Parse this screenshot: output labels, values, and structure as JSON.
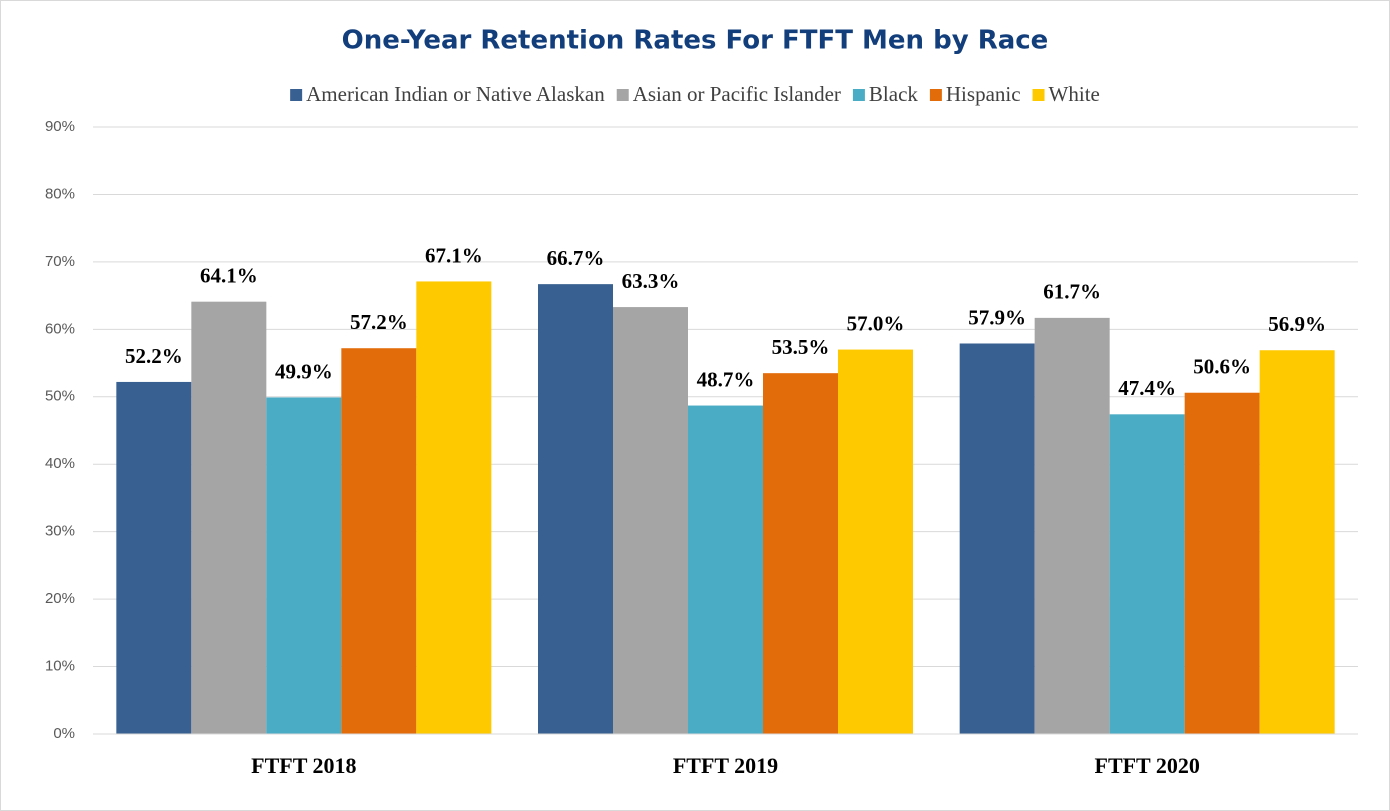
{
  "chart_data": {
    "type": "bar",
    "title": "One-Year Retention Rates For FTFT Men by Race",
    "categories": [
      "FTFT 2018",
      "FTFT 2019",
      "FTFT 2020"
    ],
    "series": [
      {
        "name": "American Indian or Native Alaskan",
        "color": "#386090",
        "values": [
          52.2,
          66.7,
          57.9
        ],
        "value_labels": [
          "52.2%",
          "66.7%",
          "57.9%"
        ]
      },
      {
        "name": "Asian or Pacific Islander",
        "color": "#a5a5a5",
        "values": [
          64.1,
          63.3,
          61.7
        ],
        "value_labels": [
          "64.1%",
          "63.3%",
          "61.7%"
        ]
      },
      {
        "name": "Black",
        "color": "#4bacc6",
        "values": [
          49.9,
          48.7,
          47.4
        ],
        "value_labels": [
          "49.9%",
          "48.7%",
          "47.4%"
        ]
      },
      {
        "name": "Hispanic",
        "color": "#e36c0a",
        "values": [
          57.2,
          53.5,
          50.6
        ],
        "value_labels": [
          "57.2%",
          "53.5%",
          "50.6%"
        ]
      },
      {
        "name": "White",
        "color": "#ffc900",
        "values": [
          67.1,
          57.0,
          56.9
        ],
        "value_labels": [
          "67.1%",
          "57.0%",
          "56.9%"
        ]
      }
    ],
    "ylim": [
      0,
      90
    ],
    "yticks": [
      {
        "value": 0,
        "label": "0%"
      },
      {
        "value": 10,
        "label": "10%"
      },
      {
        "value": 20,
        "label": "20%"
      },
      {
        "value": 30,
        "label": "30%"
      },
      {
        "value": 40,
        "label": "40%"
      },
      {
        "value": 50,
        "label": "50%"
      },
      {
        "value": 60,
        "label": "60%"
      },
      {
        "value": 70,
        "label": "70%"
      },
      {
        "value": 80,
        "label": "80%"
      },
      {
        "value": 90,
        "label": "90%"
      }
    ],
    "grid": true,
    "legend": "top"
  }
}
